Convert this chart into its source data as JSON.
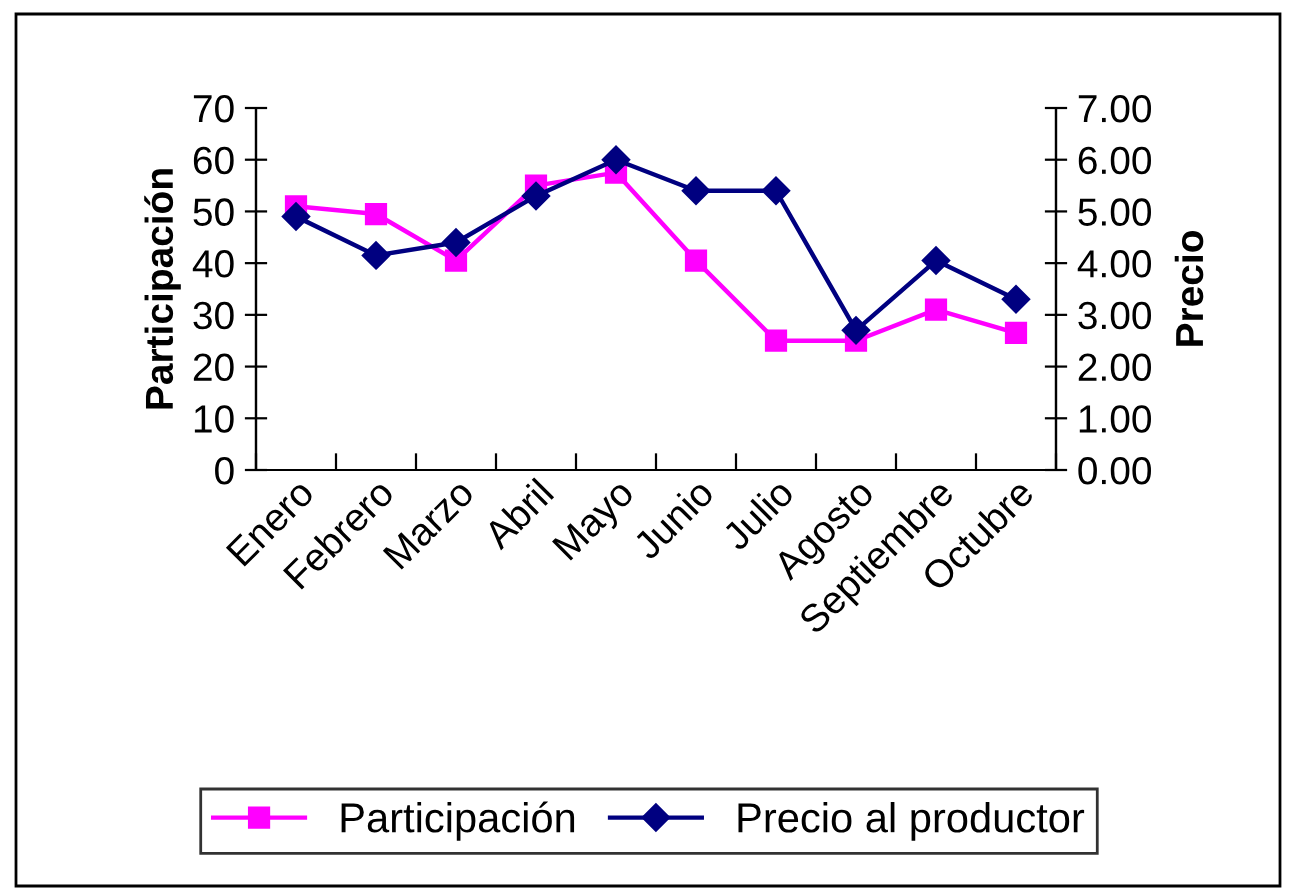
{
  "chart_data": {
    "type": "line",
    "ylabel": "Participación",
    "y2label": "Precio",
    "categories": [
      "Enero",
      "Febrero",
      "Marzo",
      "Abril",
      "Mayo",
      "Junio",
      "Julio",
      "Agosto",
      "Septiembre",
      "Octubre"
    ],
    "series": [
      {
        "name": "Participación",
        "color": "#ff00ff",
        "marker": "square",
        "values": [
          51,
          49.5,
          40.5,
          55,
          57.5,
          40.5,
          25,
          25,
          31,
          26.5
        ]
      },
      {
        "name": "Precio al productor",
        "color": "#000080",
        "marker": "diamond",
        "axis": "y2",
        "values": [
          4.9,
          4.15,
          4.4,
          5.3,
          6.0,
          5.4,
          5.4,
          2.7,
          4.05,
          3.3
        ]
      }
    ],
    "ylim": [
      0,
      70
    ],
    "yticks": [
      0,
      10,
      20,
      30,
      40,
      50,
      60,
      70
    ],
    "y2lim": [
      0,
      7
    ],
    "y2ticks": [
      {
        "value": 0,
        "label": "0.00"
      },
      {
        "value": 1,
        "label": "1.00"
      },
      {
        "value": 2,
        "label": "2.00"
      },
      {
        "value": 3,
        "label": "3.00"
      },
      {
        "value": 4,
        "label": "4.00"
      },
      {
        "value": 5,
        "label": "5.00"
      },
      {
        "value": 6,
        "label": "6.00"
      },
      {
        "value": 7,
        "label": "7.00"
      }
    ],
    "grid": false,
    "legend": "bottom",
    "line_style": "solid"
  }
}
